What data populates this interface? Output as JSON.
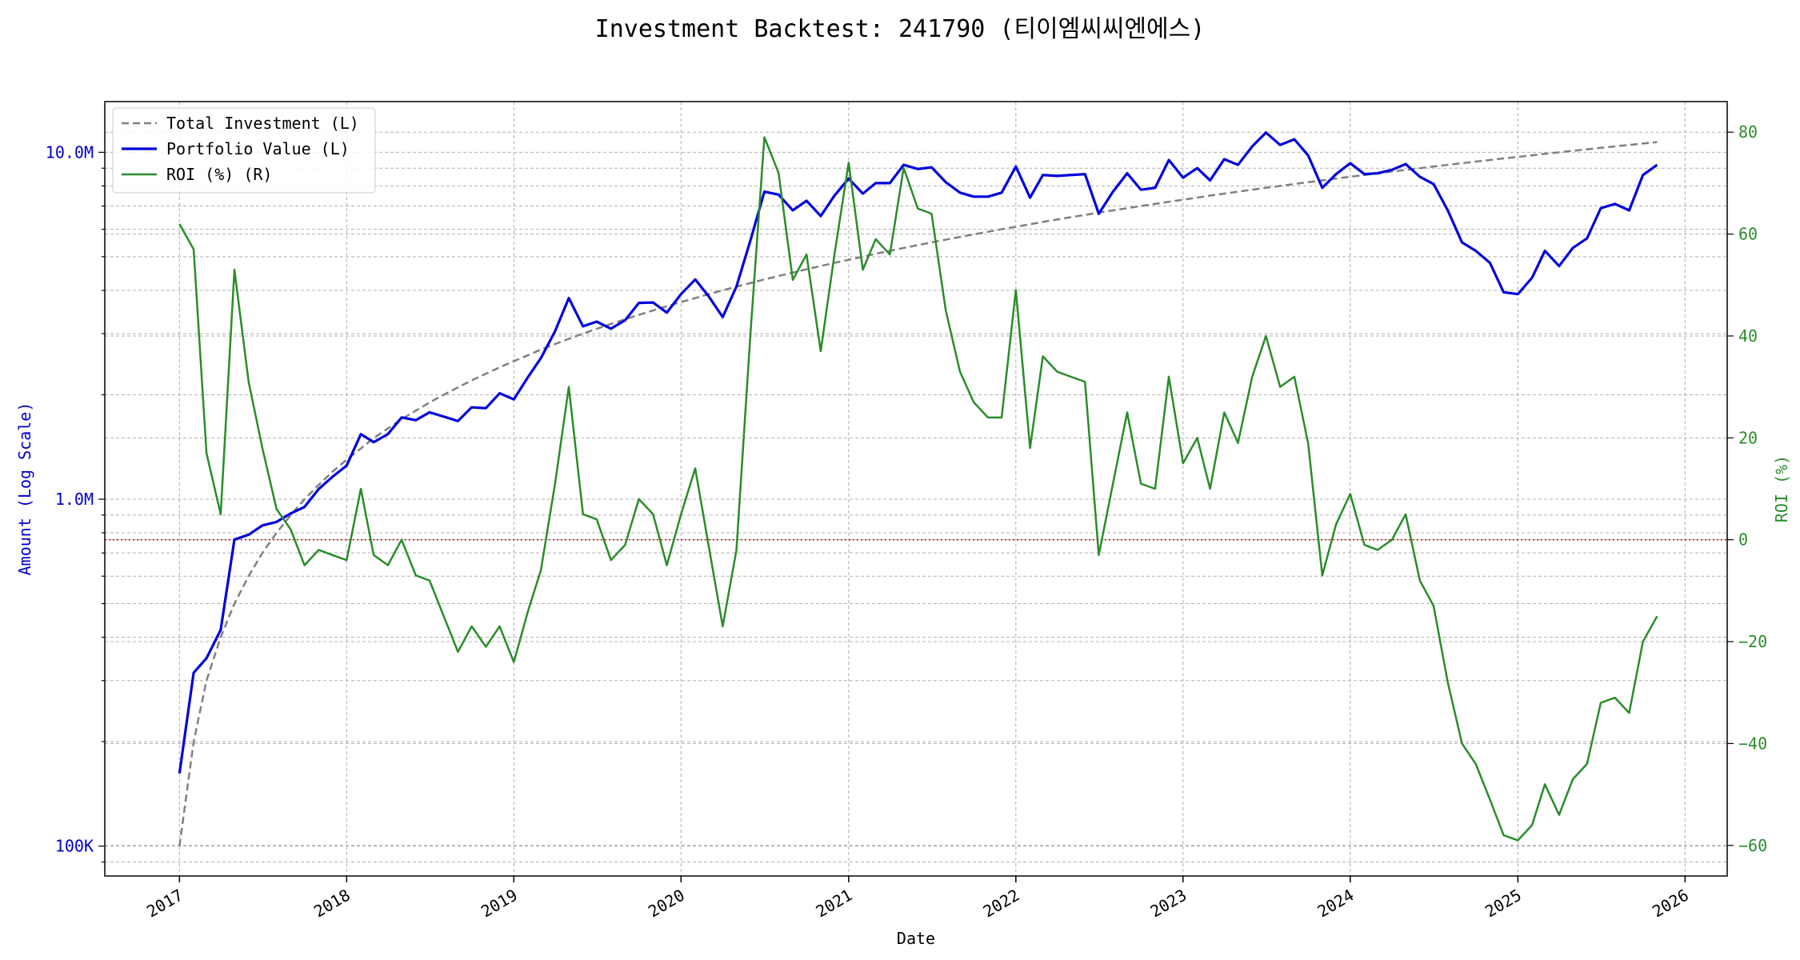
{
  "chart_data": {
    "type": "line",
    "title": "Investment Backtest: 241790 (티이엠씨씨엔에스)",
    "xlabel": "Date",
    "ylabel_left": "Amount (Log Scale)",
    "ylabel_right": "ROI (%)",
    "left_scale": "log",
    "left_ylim": [
      82000,
      14000000
    ],
    "right_ylim": [
      -66,
      86
    ],
    "xlim": [
      "2016-07-22",
      "2026-04-03"
    ],
    "x_ticks": [
      "2017",
      "2018",
      "2019",
      "2020",
      "2021",
      "2022",
      "2023",
      "2024",
      "2025",
      "2026"
    ],
    "left_ticks": [
      "100K",
      "1.0M",
      "10.0M"
    ],
    "right_ticks": [
      "−60",
      "−40",
      "−20",
      "0",
      "20",
      "40",
      "60",
      "80"
    ],
    "grid": true,
    "legend_position": "top-left",
    "reference_line": {
      "axis": "right",
      "value": 0,
      "color": "#e00000",
      "style": "dotted"
    },
    "x": [
      "2017-01",
      "2017-02",
      "2017-03",
      "2017-04",
      "2017-05",
      "2017-06",
      "2017-07",
      "2017-08",
      "2017-09",
      "2017-10",
      "2017-11",
      "2017-12",
      "2018-01",
      "2018-02",
      "2018-03",
      "2018-04",
      "2018-05",
      "2018-06",
      "2018-07",
      "2018-08",
      "2018-09",
      "2018-10",
      "2018-11",
      "2018-12",
      "2019-01",
      "2019-02",
      "2019-03",
      "2019-04",
      "2019-05",
      "2019-06",
      "2019-07",
      "2019-08",
      "2019-09",
      "2019-10",
      "2019-11",
      "2019-12",
      "2020-01",
      "2020-02",
      "2020-03",
      "2020-04",
      "2020-05",
      "2020-06",
      "2020-07",
      "2020-08",
      "2020-09",
      "2020-10",
      "2020-11",
      "2020-12",
      "2021-01",
      "2021-02",
      "2021-03",
      "2021-04",
      "2021-05",
      "2021-06",
      "2021-07",
      "2021-08",
      "2021-09",
      "2021-10",
      "2021-11",
      "2021-12",
      "2022-01",
      "2022-02",
      "2022-03",
      "2022-04",
      "2022-05",
      "2022-06",
      "2022-07",
      "2022-08",
      "2022-09",
      "2022-10",
      "2022-11",
      "2022-12",
      "2023-01",
      "2023-02",
      "2023-03",
      "2023-04",
      "2023-05",
      "2023-06",
      "2023-07",
      "2023-08",
      "2023-09",
      "2023-10",
      "2023-11",
      "2023-12",
      "2024-01",
      "2024-02",
      "2024-03",
      "2024-04",
      "2024-05",
      "2024-06",
      "2024-07",
      "2024-08",
      "2024-09",
      "2024-10",
      "2024-11",
      "2024-12",
      "2025-01",
      "2025-02",
      "2025-03",
      "2025-04",
      "2025-05",
      "2025-06",
      "2025-07",
      "2025-08",
      "2025-09",
      "2025-10",
      "2025-11"
    ],
    "series": [
      {
        "name": "Total Investment (L)",
        "axis": "left",
        "color": "#808080",
        "dash": "dashed",
        "values": [
          100000,
          200000,
          300000,
          400000,
          500000,
          600000,
          700000,
          800000,
          900000,
          1000000,
          1100000,
          1200000,
          1300000,
          1400000,
          1500000,
          1600000,
          1700000,
          1800000,
          1900000,
          2000000,
          2100000,
          2200000,
          2300000,
          2400000,
          2500000,
          2600000,
          2700000,
          2800000,
          2900000,
          3000000,
          3100000,
          3200000,
          3300000,
          3400000,
          3500000,
          3600000,
          3700000,
          3800000,
          3900000,
          4000000,
          4100000,
          4200000,
          4300000,
          4400000,
          4500000,
          4600000,
          4700000,
          4800000,
          4900000,
          5000000,
          5100000,
          5200000,
          5300000,
          5400000,
          5500000,
          5600000,
          5700000,
          5800000,
          5900000,
          6000000,
          6100000,
          6200000,
          6300000,
          6400000,
          6500000,
          6600000,
          6700000,
          6800000,
          6900000,
          7000000,
          7100000,
          7200000,
          7300000,
          7400000,
          7500000,
          7600000,
          7700000,
          7800000,
          7900000,
          8000000,
          8100000,
          8200000,
          8300000,
          8400000,
          8500000,
          8600000,
          8700000,
          8800000,
          8900000,
          9000000,
          9100000,
          9200000,
          9300000,
          9400000,
          9500000,
          9600000,
          9700000,
          9800000,
          9900000,
          10000000,
          10100000,
          10200000,
          10300000,
          10400000,
          10500000,
          10600000,
          10700000
        ]
      },
      {
        "name": "Portfolio Value (L)",
        "axis": "left",
        "color": "#0000dd",
        "dash": "solid",
        "values": [
          162000,
          316000,
          348000,
          420000,
          765000,
          790000,
          840000,
          860000,
          910000,
          950000,
          1070000,
          1160000,
          1250000,
          1540000,
          1460000,
          1540000,
          1720000,
          1690000,
          1780000,
          1730000,
          1680000,
          1840000,
          1830000,
          2020000,
          1940000,
          2250000,
          2550000,
          3050000,
          3800000,
          3150000,
          3250000,
          3100000,
          3280000,
          3680000,
          3690000,
          3450000,
          3900000,
          4300000,
          3850000,
          3350000,
          4100000,
          5600000,
          7700000,
          7550000,
          6800000,
          7250000,
          6550000,
          7500000,
          8400000,
          7600000,
          8150000,
          8150000,
          9200000,
          8950000,
          9050000,
          8200000,
          7650000,
          7450000,
          7450000,
          7650000,
          9100000,
          7400000,
          8600000,
          8550000,
          8600000,
          8650000,
          6650000,
          7700000,
          8700000,
          7800000,
          7900000,
          9500000,
          8450000,
          9000000,
          8300000,
          9550000,
          9200000,
          10400000,
          11400000,
          10500000,
          10900000,
          9800000,
          7900000,
          8650000,
          9300000,
          8650000,
          8700000,
          8900000,
          9250000,
          8500000,
          8100000,
          6800000,
          5500000,
          5200000,
          4800000,
          3950000,
          3900000,
          4350000,
          5200000,
          4700000,
          5300000,
          5650000,
          6900000,
          7100000,
          6800000,
          8600000,
          9200000
        ]
      },
      {
        "name": "ROI (%) (R)",
        "axis": "right",
        "color": "#2a8c2a",
        "dash": "solid",
        "values": [
          62,
          57,
          17,
          5,
          53,
          31,
          18,
          6,
          2,
          -5,
          -2,
          -3,
          -4,
          10,
          -3,
          -5,
          0,
          -7,
          -8,
          -15,
          -22,
          -17,
          -21,
          -17,
          -24,
          -14,
          -6,
          11,
          30,
          5,
          4,
          -4,
          -1,
          8,
          5,
          -5,
          5,
          14,
          -1,
          -17,
          -2,
          41,
          79,
          72,
          51,
          56,
          37,
          56,
          74,
          53,
          59,
          56,
          73,
          65,
          64,
          45,
          33,
          27,
          24,
          24,
          49,
          18,
          36,
          33,
          32,
          31,
          -3,
          11,
          25,
          11,
          10,
          32,
          15,
          20,
          10,
          25,
          19,
          32,
          40,
          30,
          32,
          19,
          -7,
          3,
          9,
          -1,
          -2,
          0,
          5,
          -8,
          -13,
          -28,
          -40,
          -44,
          -51,
          -58,
          -59,
          -56,
          -48,
          -54,
          -47,
          -44,
          -32,
          -31,
          -34,
          -20,
          -15
        ]
      }
    ]
  }
}
